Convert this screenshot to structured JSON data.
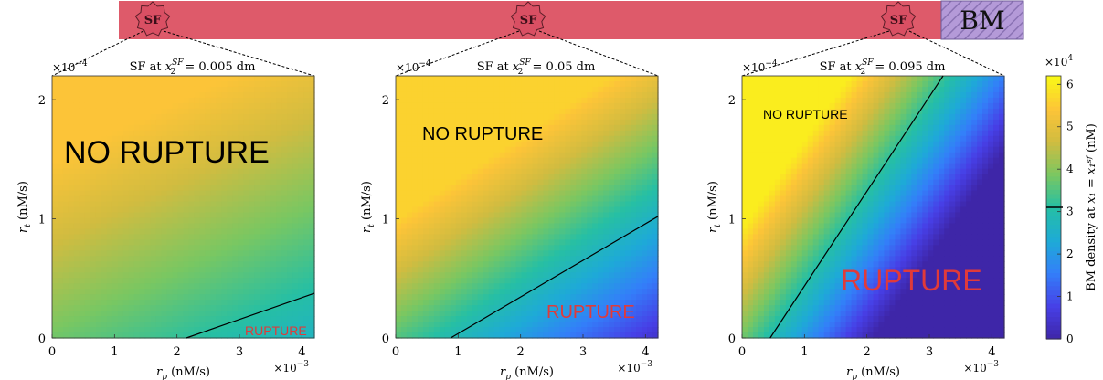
{
  "header_bar": {
    "color": "#de5a6a",
    "bm_label": "BM",
    "bm_color": "#b49ad8",
    "sf_icon_label": "SF",
    "sf_icon_color": "#d94f63"
  },
  "colors": {
    "rupture_text": "#e03a3a",
    "no_rupture_text": "#000000",
    "threshold_line": "#000000"
  },
  "chart_data": [
    {
      "type": "heatmap",
      "title": "SF at x_2^{SF} = 0.005 dm",
      "title_prefix": "SF at ",
      "title_var": "x",
      "title_sub": "2",
      "title_sup": "SF",
      "title_suffix": " = 0.005 dm",
      "xlabel_var": "r",
      "xlabel_sub": "p",
      "xlabel_unit": " (nM/s)",
      "ylabel_var": "r",
      "ylabel_sub": "t",
      "ylabel_unit": " (nM/s)",
      "xlim": [
        0,
        0.0042
      ],
      "ylim": [
        0,
        0.00022
      ],
      "x_ticks": [
        0,
        1,
        2,
        3,
        4
      ],
      "y_ticks": [
        0,
        1,
        2
      ],
      "x_multiplier": "×10",
      "x_multiplier_exp": "−3",
      "y_multiplier": "×10",
      "y_multiplier_exp": "−4",
      "density_range": [
        54000,
        27000
      ],
      "threshold_line": [
        [
          0.00215,
          0
        ],
        [
          0.0042,
          3.75e-05
        ]
      ],
      "labels": [
        {
          "text": "NO RUPTURE",
          "kind": "no"
        },
        {
          "text": "RUPTURE",
          "kind": "yes"
        }
      ]
    },
    {
      "type": "heatmap",
      "title": "SF at x_2^{SF} = 0.05 dm",
      "title_prefix": "SF at ",
      "title_var": "x",
      "title_sub": "2",
      "title_sup": "SF",
      "title_suffix": " = 0.05 dm",
      "xlabel_var": "r",
      "xlabel_sub": "p",
      "xlabel_unit": " (nM/s)",
      "ylabel_var": "r",
      "ylabel_sub": "t",
      "ylabel_unit": " (nM/s)",
      "xlim": [
        0,
        0.0042
      ],
      "ylim": [
        0,
        0.00022
      ],
      "x_ticks": [
        0,
        1,
        2,
        3,
        4
      ],
      "y_ticks": [
        0,
        1,
        2
      ],
      "x_multiplier": "×10",
      "x_multiplier_exp": "−3",
      "y_multiplier": "×10",
      "y_multiplier_exp": "−4",
      "density_range": [
        56000,
        4000
      ],
      "threshold_line": [
        [
          0.00088,
          0
        ],
        [
          0.0042,
          0.000102
        ]
      ],
      "labels": [
        {
          "text": "NO RUPTURE",
          "kind": "no"
        },
        {
          "text": "RUPTURE",
          "kind": "yes"
        }
      ]
    },
    {
      "type": "heatmap",
      "title": "SF at x_2^{SF} = 0.095 dm",
      "title_prefix": "SF at ",
      "title_var": "x",
      "title_sub": "2",
      "title_sup": "SF",
      "title_suffix": " = 0.095 dm",
      "xlabel_var": "r",
      "xlabel_sub": "p",
      "xlabel_unit": " (nM/s)",
      "ylabel_var": "r",
      "ylabel_sub": "t",
      "ylabel_unit": " (nM/s)",
      "xlim": [
        0,
        0.0042
      ],
      "ylim": [
        0,
        0.00022
      ],
      "x_ticks": [
        0,
        1,
        2,
        3,
        4
      ],
      "y_ticks": [
        0,
        1,
        2
      ],
      "x_multiplier": "×10",
      "x_multiplier_exp": "−3",
      "y_multiplier": "×10",
      "y_multiplier_exp": "−4",
      "density_range": [
        60000,
        0
      ],
      "threshold_line": [
        [
          0.00045,
          0
        ],
        [
          0.00322,
          0.00022
        ]
      ],
      "labels": [
        {
          "text": "NO RUPTURE",
          "kind": "no"
        },
        {
          "text": "RUPTURE",
          "kind": "yes"
        }
      ]
    }
  ],
  "colorbar": {
    "label_prefix": "BM density at ",
    "label_math": "x₁ = x₁ˢᶠ",
    "label_unit": " (nM)",
    "multiplier": "×10",
    "multiplier_exp": "4",
    "ticks": [
      0,
      1,
      2,
      3,
      4,
      5,
      6
    ],
    "range": [
      0,
      62000
    ],
    "threshold_value": 31000
  }
}
